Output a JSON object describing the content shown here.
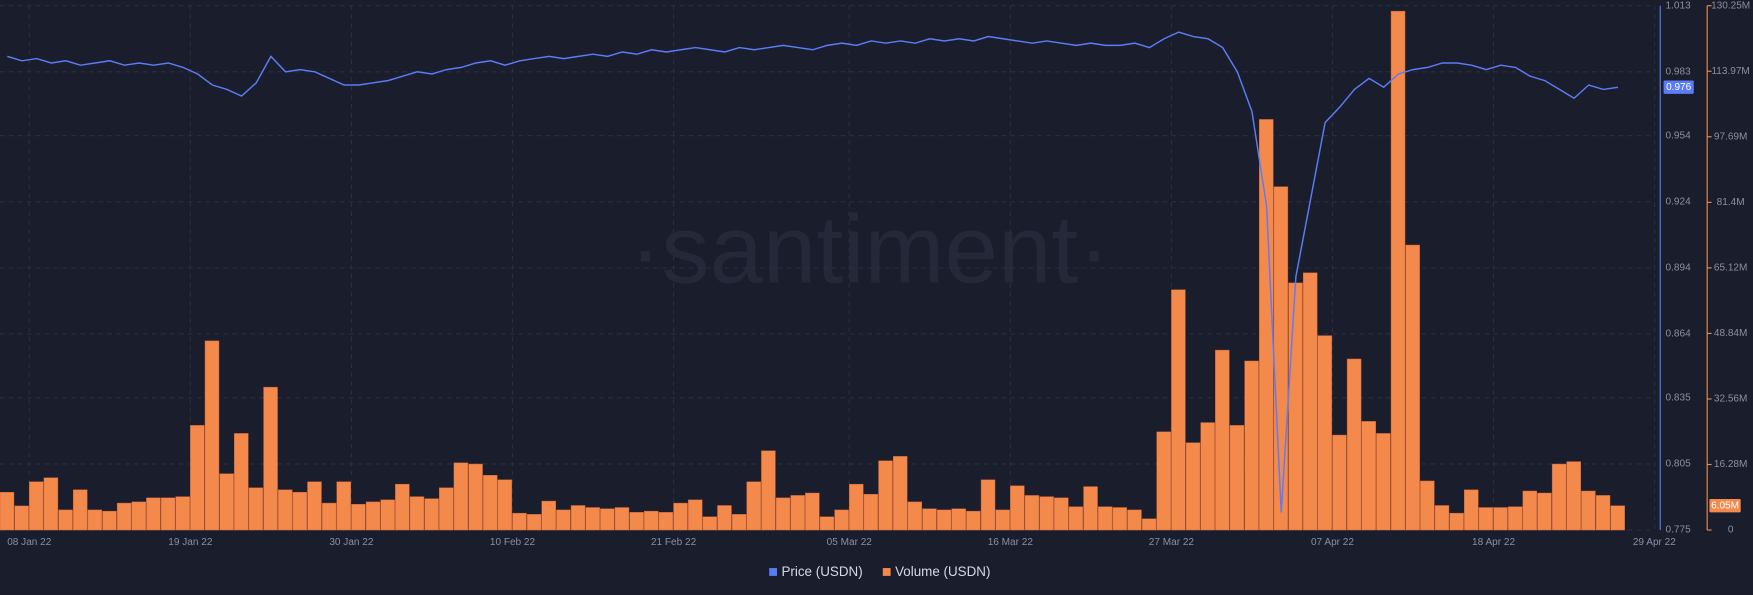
{
  "chart_data": {
    "type": "bar-line",
    "watermark": "·santiment·",
    "x": [
      "2022-01-06",
      "2022-01-07",
      "2022-01-08",
      "2022-01-09",
      "2022-01-10",
      "2022-01-11",
      "2022-01-12",
      "2022-01-13",
      "2022-01-14",
      "2022-01-15",
      "2022-01-16",
      "2022-01-17",
      "2022-01-18",
      "2022-01-19",
      "2022-01-20",
      "2022-01-21",
      "2022-01-22",
      "2022-01-23",
      "2022-01-24",
      "2022-01-25",
      "2022-01-26",
      "2022-01-27",
      "2022-01-28",
      "2022-01-29",
      "2022-01-30",
      "2022-01-31",
      "2022-02-01",
      "2022-02-02",
      "2022-02-03",
      "2022-02-04",
      "2022-02-05",
      "2022-02-06",
      "2022-02-07",
      "2022-02-08",
      "2022-02-09",
      "2022-02-10",
      "2022-02-11",
      "2022-02-12",
      "2022-02-13",
      "2022-02-14",
      "2022-02-15",
      "2022-02-16",
      "2022-02-17",
      "2022-02-18",
      "2022-02-19",
      "2022-02-20",
      "2022-02-21",
      "2022-02-22",
      "2022-02-23",
      "2022-02-24",
      "2022-02-25",
      "2022-02-26",
      "2022-02-27",
      "2022-02-28",
      "2022-03-01",
      "2022-03-02",
      "2022-03-03",
      "2022-03-04",
      "2022-03-05",
      "2022-03-06",
      "2022-03-07",
      "2022-03-08",
      "2022-03-09",
      "2022-03-10",
      "2022-03-11",
      "2022-03-12",
      "2022-03-13",
      "2022-03-14",
      "2022-03-15",
      "2022-03-16",
      "2022-03-17",
      "2022-03-18",
      "2022-03-19",
      "2022-03-20",
      "2022-03-21",
      "2022-03-22",
      "2022-03-23",
      "2022-03-24",
      "2022-03-25",
      "2022-03-26",
      "2022-03-27",
      "2022-03-28",
      "2022-03-29",
      "2022-03-30",
      "2022-03-31",
      "2022-04-01",
      "2022-04-02",
      "2022-04-03",
      "2022-04-04",
      "2022-04-05",
      "2022-04-06",
      "2022-04-07",
      "2022-04-08",
      "2022-04-09",
      "2022-04-10",
      "2022-04-11",
      "2022-04-12",
      "2022-04-13",
      "2022-04-14",
      "2022-04-15",
      "2022-04-16",
      "2022-04-17",
      "2022-04-18",
      "2022-04-19",
      "2022-04-20",
      "2022-04-21",
      "2022-04-22",
      "2022-04-23",
      "2022-04-24",
      "2022-04-25",
      "2022-04-26"
    ],
    "xlim": [
      "2022-01-06",
      "2022-04-29"
    ],
    "xticks": [
      {
        "value": "2022-01-08",
        "label": "08 Jan 22"
      },
      {
        "value": "2022-01-19",
        "label": "19 Jan 22"
      },
      {
        "value": "2022-01-30",
        "label": "30 Jan 22"
      },
      {
        "value": "2022-02-10",
        "label": "10 Feb 22"
      },
      {
        "value": "2022-02-21",
        "label": "21 Feb 22"
      },
      {
        "value": "2022-03-05",
        "label": "05 Mar 22"
      },
      {
        "value": "2022-03-16",
        "label": "16 Mar 22"
      },
      {
        "value": "2022-03-27",
        "label": "27 Mar 22"
      },
      {
        "value": "2022-04-07",
        "label": "07 Apr 22"
      },
      {
        "value": "2022-04-18",
        "label": "18 Apr 22"
      },
      {
        "value": "2022-04-29",
        "label": "29 Apr 22"
      }
    ],
    "ylim": [
      0.775,
      1.013
    ],
    "yticks": [
      0.775,
      0.805,
      0.835,
      0.864,
      0.894,
      0.924,
      0.954,
      0.983,
      1.013
    ],
    "y2lim": [
      0,
      130.25
    ],
    "y2ticks": [
      0,
      {
        "value": 16.28,
        "label": "16.28M"
      },
      {
        "value": 32.56,
        "label": "32.56M"
      },
      {
        "value": 48.84,
        "label": "48.84M"
      },
      {
        "value": 65.12,
        "label": "65.12M"
      },
      {
        "value": 81.4,
        "label": "81.4M"
      },
      {
        "value": 97.69,
        "label": "97.69M"
      },
      {
        "value": 113.97,
        "label": "113.97M"
      },
      {
        "value": 130.25,
        "label": "130.25M"
      }
    ],
    "grid": true,
    "legend": "bottom",
    "series": [
      {
        "name": "Volume (USDN)",
        "type": "bar",
        "axis": "y2",
        "color": "#f4894c",
        "current_label": "6.05M",
        "values": [
          9.4,
          6,
          12,
          13,
          5,
          10,
          5,
          4.7,
          6.7,
          7,
          8,
          8,
          8.3,
          26,
          47,
          14,
          24,
          10.5,
          35.5,
          10,
          9.4,
          12,
          6.7,
          12,
          6.4,
          7,
          7.5,
          11.4,
          8.3,
          7.8,
          10.5,
          16.7,
          16.4,
          13.6,
          12.5,
          4.2,
          3.9,
          7.2,
          5,
          6.1,
          5.6,
          5.3,
          5.6,
          4.4,
          4.7,
          4.4,
          6.7,
          7.5,
          3.3,
          6.1,
          3.9,
          12,
          19.7,
          8,
          8.6,
          9.2,
          3.3,
          5,
          11.4,
          8.9,
          17.2,
          18.3,
          7,
          5.3,
          5,
          5.3,
          4.7,
          12.5,
          5,
          11,
          8.6,
          8.3,
          8,
          5.8,
          10.8,
          5.8,
          5.6,
          5,
          2.8,
          24.4,
          59.7,
          21.7,
          26.7,
          44.7,
          26,
          42,
          102,
          85.3,
          61.4,
          63.9,
          48.3,
          23.6,
          42.5,
          27,
          24,
          128.9,
          70.8,
          12.2,
          6.1,
          4.2,
          10,
          5.6,
          5.6,
          5.8,
          9.7,
          9.2,
          16.4,
          17,
          9.7,
          8.6,
          6.05
        ]
      },
      {
        "name": "Price (USDN)",
        "type": "line",
        "axis": "y",
        "color": "#5b7cf5",
        "current_label": "0.976",
        "values": [
          0.99,
          0.988,
          0.989,
          0.987,
          0.988,
          0.986,
          0.987,
          0.988,
          0.986,
          0.987,
          0.986,
          0.987,
          0.985,
          0.982,
          0.977,
          0.975,
          0.972,
          0.978,
          0.99,
          0.983,
          0.984,
          0.983,
          0.98,
          0.977,
          0.977,
          0.978,
          0.979,
          0.981,
          0.983,
          0.982,
          0.984,
          0.985,
          0.987,
          0.988,
          0.986,
          0.988,
          0.989,
          0.99,
          0.989,
          0.99,
          0.991,
          0.99,
          0.992,
          0.991,
          0.993,
          0.992,
          0.993,
          0.994,
          0.993,
          0.992,
          0.994,
          0.993,
          0.994,
          0.995,
          0.994,
          0.993,
          0.995,
          0.996,
          0.995,
          0.997,
          0.996,
          0.997,
          0.996,
          0.998,
          0.997,
          0.998,
          0.997,
          0.999,
          0.998,
          0.997,
          0.996,
          0.997,
          0.996,
          0.995,
          0.996,
          0.995,
          0.995,
          0.996,
          0.994,
          0.998,
          1.001,
          0.999,
          0.998,
          0.994,
          0.983,
          0.965,
          0.922,
          0.783,
          0.89,
          0.925,
          0.96,
          0.967,
          0.975,
          0.98,
          0.976,
          0.982,
          0.984,
          0.985,
          0.987,
          0.987,
          0.986,
          0.984,
          0.986,
          0.985,
          0.981,
          0.979,
          0.975,
          0.971,
          0.977,
          0.975,
          0.976
        ]
      }
    ]
  }
}
